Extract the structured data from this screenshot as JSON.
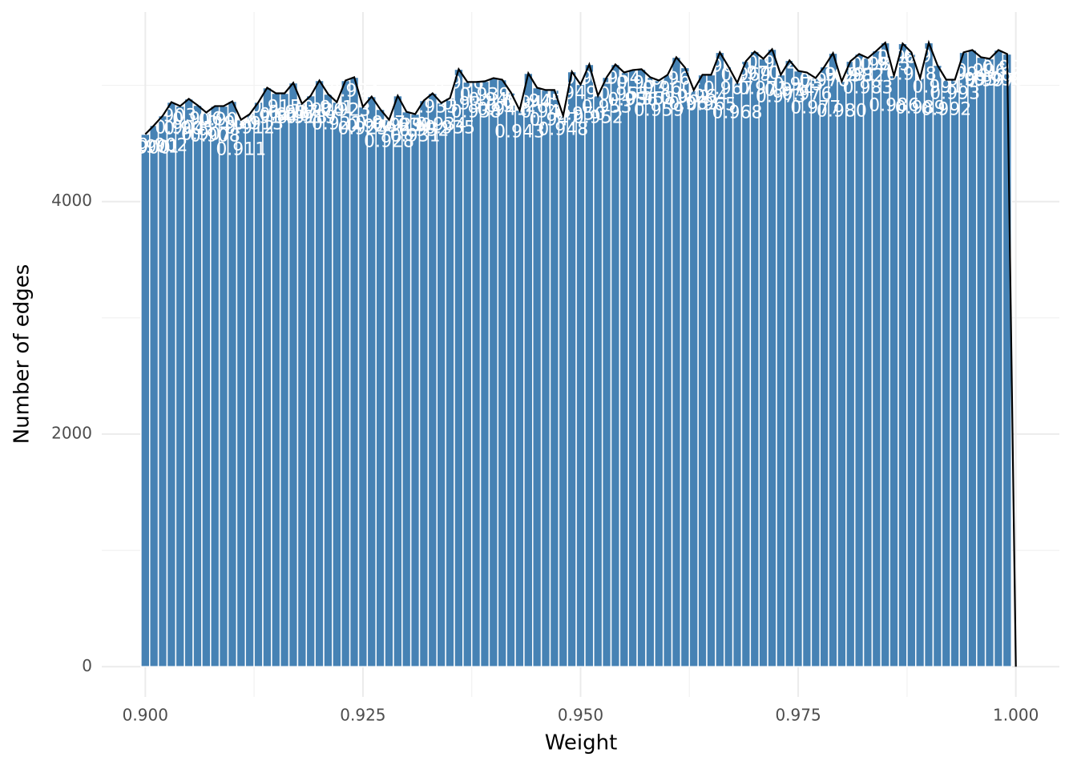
{
  "chart_data": {
    "type": "histogram",
    "xlabel": "Weight",
    "ylabel": "Number of edges",
    "color": "#4682b4",
    "line_color": "#000000",
    "grid": true,
    "xlim": [
      0.895,
      1.005
    ],
    "ylim": [
      -260,
      5630
    ],
    "xticks": [
      {
        "value": 0.9,
        "label": "0.900"
      },
      0.925,
      {
        "value": 0.95,
        "label": "0.950"
      },
      0.975,
      {
        "value": 1,
        "label": "1.000"
      }
    ],
    "xminor": [
      0.9125,
      0.9375,
      0.9625,
      0.9875
    ],
    "yticks": [
      0,
      2000,
      4000
    ],
    "yminor": [
      1000,
      3000,
      5000
    ],
    "bins": [
      0.8995,
      0.9005,
      0.9015,
      0.9025,
      0.9035,
      0.9045,
      0.9055,
      0.9065,
      0.9075,
      0.9085,
      0.9095,
      0.9105,
      0.9115,
      0.9125,
      0.9135,
      0.9145,
      0.9155,
      0.9165,
      0.9175,
      0.9185,
      0.9195,
      0.9205,
      0.9215,
      0.9225,
      0.9235,
      0.9245,
      0.9255,
      0.9265,
      0.9275,
      0.9285,
      0.9295,
      0.9305,
      0.9315,
      0.9325,
      0.9335,
      0.9345,
      0.9355,
      0.9365,
      0.9375,
      0.9385,
      0.9395,
      0.9405,
      0.9415,
      0.9425,
      0.9435,
      0.9445,
      0.9455,
      0.9465,
      0.9475,
      0.9485,
      0.9495,
      0.9505,
      0.9515,
      0.9525,
      0.9535,
      0.9545,
      0.9555,
      0.9565,
      0.9575,
      0.9585,
      0.9595,
      0.9605,
      0.9615,
      0.9625,
      0.9635,
      0.9645,
      0.9655,
      0.9665,
      0.9675,
      0.9685,
      0.9695,
      0.9705,
      0.9715,
      0.9725,
      0.9735,
      0.9745,
      0.9755,
      0.9765,
      0.9775,
      0.9785,
      0.9795,
      0.9805,
      0.9815,
      0.9825,
      0.9835,
      0.9845,
      0.9855,
      0.9865,
      0.9875,
      0.9885,
      0.9895,
      0.9905,
      0.9915,
      0.9925,
      0.9935,
      0.9945,
      0.9955,
      0.9965,
      0.9975,
      0.9985,
      0.9995
    ],
    "counts": [
      4579,
      4655,
      4738,
      4855,
      4821,
      4883,
      4828,
      4766,
      4821,
      4821,
      4862,
      4703,
      4752,
      4855,
      4979,
      4931,
      4931,
      5021,
      4841,
      4910,
      5041,
      4924,
      4855,
      5041,
      5069,
      4814,
      4903,
      4793,
      4703,
      4910,
      4772,
      4752,
      4869,
      4931,
      4848,
      4890,
      5138,
      5028,
      5028,
      5034,
      5062,
      5048,
      4938,
      4786,
      5103,
      4979,
      4959,
      4959,
      4738,
      5117,
      5007,
      5179,
      4910,
      5069,
      5179,
      5110,
      5131,
      5138,
      5069,
      5041,
      5090,
      5241,
      5152,
      4959,
      5090,
      5090,
      5283,
      5159,
      5021,
      5207,
      5290,
      5228,
      5310,
      5090,
      5214,
      5124,
      5110,
      5062,
      5159,
      5276,
      5034,
      5207,
      5269,
      5234,
      5297,
      5366,
      5083,
      5359,
      5283,
      5062,
      5366,
      5172,
      5048,
      5048,
      5283,
      5303,
      5241,
      5228,
      5303,
      5269
    ],
    "bar_labels": [
      "0.900",
      "0.901",
      "0.902",
      "0.903",
      "0.904",
      "0.905",
      "0.906",
      "0.907",
      "0.908",
      "0.909",
      "0.910",
      "0.911",
      "0.912",
      "0.913",
      "0.914",
      "0.915",
      "0.916",
      "0.917",
      "0.918",
      "0.919",
      "0.920",
      "0.921",
      "0.922",
      "0.923",
      "0.924",
      "0.925",
      "0.926",
      "0.927",
      "0.928",
      "0.929",
      "0.930",
      "0.931",
      "0.932",
      "0.933",
      "0.934",
      "0.935",
      "0.936",
      "0.937",
      "0.938",
      "0.939",
      "0.940",
      "0.941",
      "0.942",
      "0.943",
      "0.944",
      "0.945",
      "0.946",
      "0.947",
      "0.948",
      "0.949",
      "0.950",
      "0.951",
      "0.952",
      "0.953",
      "0.954",
      "0.955",
      "0.956",
      "0.957",
      "0.958",
      "0.959",
      "0.960",
      "0.961",
      "0.962",
      "0.963",
      "0.964",
      "0.965",
      "0.966",
      "0.967",
      "0.968",
      "0.969",
      "0.970",
      "0.971",
      "0.972",
      "0.973",
      "0.974",
      "0.975",
      "0.976",
      "0.977",
      "0.978",
      "0.979",
      "0.980",
      "0.981",
      "0.982",
      "0.983",
      "0.984",
      "0.985",
      "0.986",
      "0.987",
      "0.988",
      "0.989",
      "0.990",
      "0.991",
      "0.992",
      "0.993",
      "0.994",
      "0.995",
      "0.996",
      "0.997",
      "0.998",
      "0.999"
    ],
    "line": {
      "x": [
        0.9,
        0.901,
        0.902,
        0.903,
        0.904,
        0.905,
        0.906,
        0.907,
        0.908,
        0.909,
        0.91,
        0.911,
        0.912,
        0.913,
        0.914,
        0.915,
        0.916,
        0.917,
        0.918,
        0.919,
        0.92,
        0.921,
        0.922,
        0.923,
        0.924,
        0.925,
        0.926,
        0.927,
        0.928,
        0.929,
        0.93,
        0.931,
        0.932,
        0.933,
        0.934,
        0.935,
        0.936,
        0.937,
        0.938,
        0.939,
        0.94,
        0.941,
        0.942,
        0.943,
        0.944,
        0.945,
        0.946,
        0.947,
        0.948,
        0.949,
        0.95,
        0.951,
        0.952,
        0.953,
        0.954,
        0.955,
        0.956,
        0.957,
        0.958,
        0.959,
        0.96,
        0.961,
        0.962,
        0.963,
        0.964,
        0.965,
        0.966,
        0.967,
        0.968,
        0.969,
        0.97,
        0.971,
        0.972,
        0.973,
        0.974,
        0.975,
        0.976,
        0.977,
        0.978,
        0.979,
        0.98,
        0.981,
        0.982,
        0.983,
        0.984,
        0.985,
        0.986,
        0.987,
        0.988,
        0.989,
        0.99,
        0.991,
        0.992,
        0.993,
        0.994,
        0.995,
        0.996,
        0.997,
        0.998,
        0.999,
        1
      ],
      "values": [
        4579,
        4655,
        4738,
        4855,
        4821,
        4883,
        4828,
        4766,
        4821,
        4821,
        4862,
        4703,
        4752,
        4855,
        4979,
        4931,
        4931,
        5021,
        4841,
        4910,
        5041,
        4924,
        4855,
        5041,
        5069,
        4814,
        4903,
        4793,
        4703,
        4910,
        4772,
        4752,
        4869,
        4931,
        4848,
        4890,
        5138,
        5028,
        5028,
        5034,
        5062,
        5048,
        4938,
        4786,
        5103,
        4979,
        4959,
        4959,
        4738,
        5117,
        5007,
        5179,
        4910,
        5069,
        5179,
        5110,
        5131,
        5138,
        5069,
        5041,
        5090,
        5241,
        5152,
        4959,
        5090,
        5090,
        5283,
        5159,
        5021,
        5207,
        5290,
        5228,
        5310,
        5090,
        5214,
        5124,
        5110,
        5062,
        5159,
        5276,
        5034,
        5207,
        5269,
        5234,
        5297,
        5366,
        5083,
        5359,
        5283,
        5062,
        5366,
        5172,
        5048,
        5048,
        5283,
        5303,
        5241,
        5228,
        5303,
        5269,
        0
      ]
    }
  }
}
